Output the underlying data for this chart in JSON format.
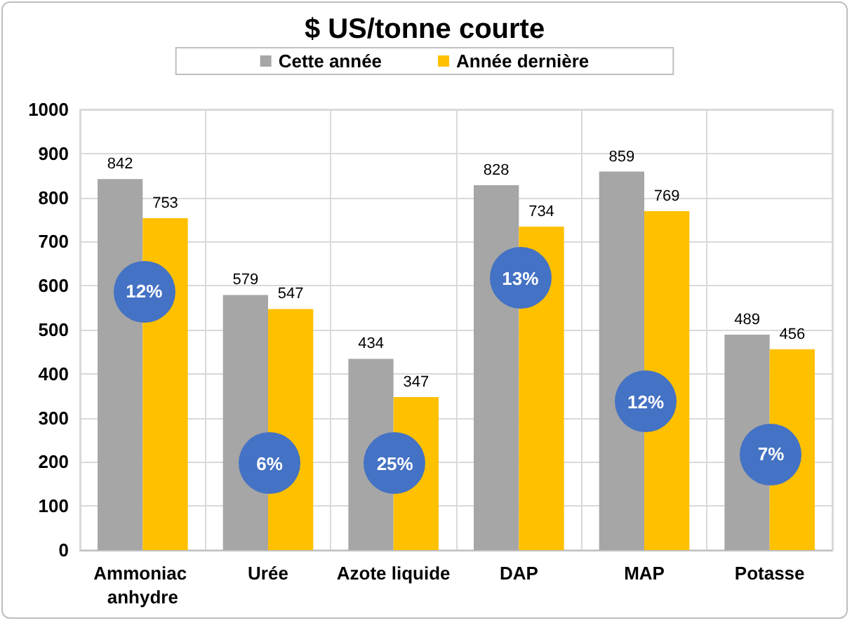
{
  "chart_data": {
    "type": "bar",
    "title": "$ US/tonne courte",
    "categories": [
      "Ammoniac anhydre",
      "Urée",
      "Azote liquide",
      "DAP",
      "MAP",
      "Potasse"
    ],
    "series": [
      {
        "name": "Cette année",
        "color": "#a6a6a6",
        "values": [
          842,
          579,
          434,
          828,
          859,
          489
        ]
      },
      {
        "name": "Année dernière",
        "color": "#ffc000",
        "values": [
          753,
          547,
          347,
          734,
          769,
          456
        ]
      }
    ],
    "ylim": [
      0,
      1000
    ],
    "yticks": [
      0,
      100,
      200,
      300,
      400,
      500,
      600,
      700,
      800,
      900,
      1000
    ],
    "grid": true,
    "legend": "top",
    "data_labels": true,
    "annotations": [
      {
        "text": "12%",
        "x": "Ammoniac anhydre",
        "y": 590
      },
      {
        "text": "6%",
        "x": "Urée",
        "y": 200
      },
      {
        "text": "25%",
        "x": "Azote liquide",
        "y": 200
      },
      {
        "text": "13%",
        "x": "DAP",
        "y": 620
      },
      {
        "text": "12%",
        "x": "MAP",
        "y": 340
      },
      {
        "text": "7%",
        "x": "Potasse",
        "y": 220
      }
    ]
  }
}
